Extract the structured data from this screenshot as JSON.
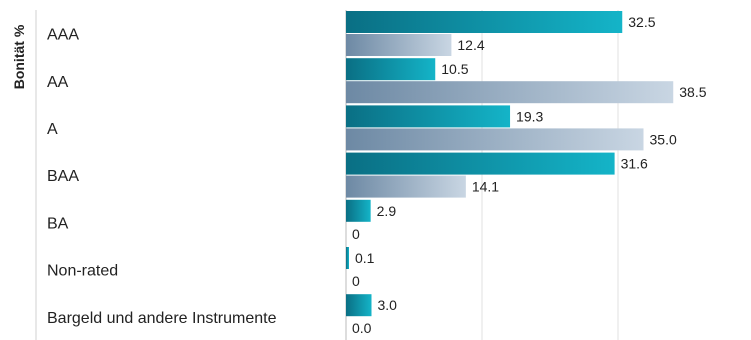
{
  "chart_data": {
    "type": "bar",
    "orientation": "horizontal",
    "ylabel": "Bonität %",
    "categories": [
      "AAA",
      "AA",
      "A",
      "BAA",
      "BA",
      "Non-rated",
      "Bargeld und andere Instrumente"
    ],
    "series": [
      {
        "values": [
          32.5,
          10.5,
          19.3,
          31.6,
          2.9,
          0.1,
          3.0
        ],
        "labels": [
          "32.5",
          "10.5",
          "19.3",
          "31.6",
          "2.9",
          "0.1",
          "3.0"
        ]
      },
      {
        "values": [
          12.4,
          38.5,
          35.0,
          14.1,
          0,
          0,
          0.0
        ],
        "labels": [
          "12.4",
          "38.5",
          "35.0",
          "14.1",
          "0",
          "0",
          "0.0"
        ]
      }
    ],
    "xlim": [
      0,
      40
    ],
    "grid": true,
    "colors": {
      "series1_start": "#0a6f84",
      "series1_end": "#14b4c8",
      "series2_start": "#6d89a4",
      "series2_end": "#c9d6e3",
      "grid": "#e2e2e2",
      "axis": "#bbbbbb"
    }
  }
}
